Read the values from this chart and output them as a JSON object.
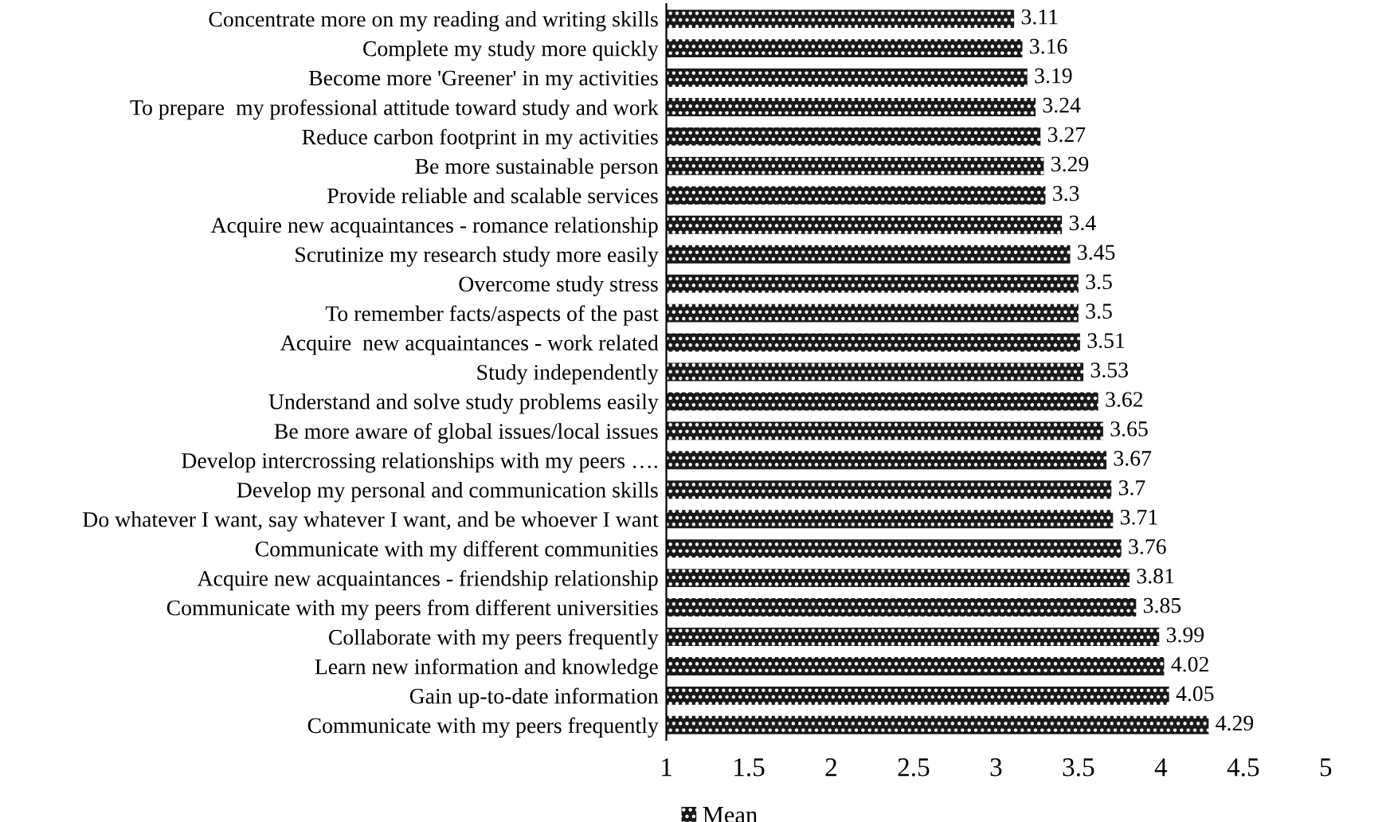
{
  "chart_data": {
    "type": "bar",
    "orientation": "horizontal",
    "categories": [
      "Concentrate more on my reading and writing skills",
      "Complete my study more quickly",
      "Become more 'Greener' in my activities",
      "To prepare  my professional attitude toward study and work",
      "Reduce carbon footprint in my activities",
      "Be more sustainable person",
      "Provide reliable and scalable services",
      "Acquire new acquaintances - romance relationship",
      "Scrutinize my research study more easily",
      "Overcome study stress",
      "To remember facts/aspects of the past",
      "Acquire  new acquaintances - work related",
      "Study independently",
      "Understand and solve study problems easily",
      "Be more aware of global issues/local issues",
      "Develop intercrossing relationships with my peers ….",
      "Develop my personal and communication skills",
      "Do whatever I want, say whatever I want, and be whoever I want",
      "Communicate with my different communities",
      "Acquire new acquaintances - friendship relationship",
      "Communicate with my peers from different universities",
      "Collaborate with my peers frequently",
      "Learn new information and knowledge",
      "Gain up-to-date information",
      "Communicate with my peers frequently"
    ],
    "series": [
      {
        "name": "Mean",
        "color": "#1a1a1a",
        "values": [
          3.11,
          3.16,
          3.19,
          3.24,
          3.27,
          3.29,
          3.3,
          3.4,
          3.45,
          3.5,
          3.5,
          3.51,
          3.53,
          3.62,
          3.65,
          3.67,
          3.7,
          3.71,
          3.76,
          3.81,
          3.85,
          3.99,
          4.02,
          4.05,
          4.29
        ]
      }
    ],
    "xlim": [
      1,
      5
    ],
    "xticks": [
      1,
      1.5,
      2,
      2.5,
      3,
      3.5,
      4,
      4.5,
      5
    ],
    "data_labels": true,
    "legend": "bottom",
    "grid": false
  }
}
